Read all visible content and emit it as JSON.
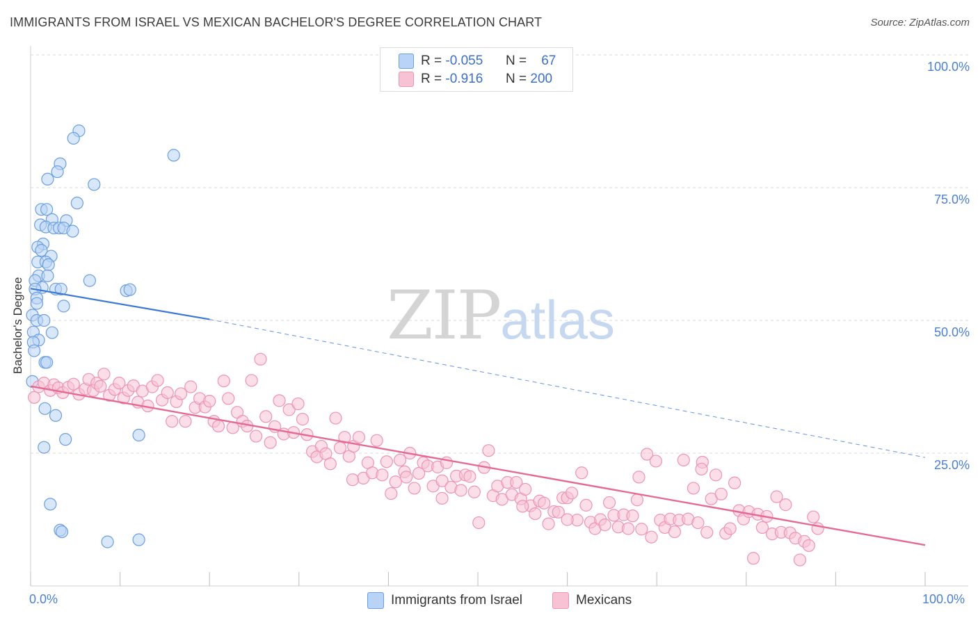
{
  "header": {
    "title": "IMMIGRANTS FROM ISRAEL VS MEXICAN BACHELOR'S DEGREE CORRELATION CHART",
    "source": "Source: ZipAtlas.com"
  },
  "watermark": {
    "zip": "ZIP",
    "atlas": "atlas"
  },
  "legend_top": {
    "israel": {
      "r_label": "R =",
      "r_value": "-0.055",
      "n_label": "N =",
      "n_value": "67"
    },
    "mexicans": {
      "r_label": "R =",
      "r_value": "-0.916",
      "n_label": "N =",
      "n_value": "200"
    }
  },
  "colors": {
    "israel_fill": "#b8d3f5",
    "israel_stroke": "#6a9ede",
    "israel_line": "#3a78d4",
    "mexicans_fill": "#f7c3d4",
    "mexicans_stroke": "#ee93b2",
    "mexicans_line": "#e46a95",
    "grid": "#d8d8d8",
    "tick_label": "#4a7fd0"
  },
  "chart_data": {
    "type": "scatter",
    "title": "IMMIGRANTS FROM ISRAEL VS MEXICAN BACHELOR'S DEGREE CORRELATION CHART",
    "xlabel": "",
    "ylabel": "Bachelor's Degree",
    "xlim": [
      0,
      100
    ],
    "ylim": [
      0,
      100
    ],
    "x_tick_labels": [
      "0.0%",
      "100.0%"
    ],
    "y_tick_labels": [
      "100.0%",
      "75.0%",
      "50.0%",
      "25.0%"
    ],
    "y_tick_values": [
      100,
      75,
      50,
      25
    ],
    "grid": true,
    "legend_position": "bottom",
    "series": [
      {
        "name": "Immigrants from Israel",
        "color": "#6a9ede",
        "points": [
          [
            5.4,
            85.7
          ],
          [
            4.8,
            84.3
          ],
          [
            16,
            81.1
          ],
          [
            3.3,
            79.5
          ],
          [
            3.0,
            78.0
          ],
          [
            1.9,
            76.6
          ],
          [
            7.1,
            75.6
          ],
          [
            5.2,
            72.1
          ],
          [
            1.2,
            70.9
          ],
          [
            1.8,
            70.9
          ],
          [
            2.4,
            69.0
          ],
          [
            4.0,
            68.8
          ],
          [
            1.1,
            68.0
          ],
          [
            1.7,
            67.6
          ],
          [
            2.6,
            67.4
          ],
          [
            3.2,
            67.4
          ],
          [
            3.7,
            67.4
          ],
          [
            4.7,
            66.8
          ],
          [
            1.4,
            64.4
          ],
          [
            0.8,
            63.8
          ],
          [
            1.2,
            63.2
          ],
          [
            2.3,
            62.1
          ],
          [
            0.8,
            61.0
          ],
          [
            1.7,
            61.0
          ],
          [
            2.0,
            60.5
          ],
          [
            0.9,
            58.4
          ],
          [
            1.9,
            58.4
          ],
          [
            0.5,
            57.5
          ],
          [
            6.6,
            57.5
          ],
          [
            1.3,
            56.2
          ],
          [
            0.5,
            55.9
          ],
          [
            2.8,
            55.9
          ],
          [
            3.4,
            55.9
          ],
          [
            10.7,
            55.6
          ],
          [
            11.1,
            55.8
          ],
          [
            0.7,
            54.2
          ],
          [
            0.7,
            53.2
          ],
          [
            3.7,
            52.7
          ],
          [
            0.2,
            51.0
          ],
          [
            0.7,
            50.0
          ],
          [
            1.5,
            50.0
          ],
          [
            0.3,
            47.8
          ],
          [
            2.4,
            47.7
          ],
          [
            0.9,
            46.3
          ],
          [
            0.3,
            45.9
          ],
          [
            0.4,
            44.3
          ],
          [
            1.6,
            42.1
          ],
          [
            1.8,
            42.1
          ],
          [
            0.2,
            38.5
          ],
          [
            1.6,
            33.4
          ],
          [
            2.8,
            32.1
          ],
          [
            12.1,
            28.4
          ],
          [
            3.9,
            27.6
          ],
          [
            1.5,
            26.1
          ],
          [
            2.2,
            15.4
          ],
          [
            3.3,
            10.5
          ],
          [
            3.5,
            10.2
          ],
          [
            8.6,
            8.3
          ],
          [
            12.1,
            8.7
          ]
        ]
      },
      {
        "name": "Mexicans",
        "color": "#ee93b2",
        "points": [
          [
            0.4,
            35.5
          ],
          [
            0.9,
            37.5
          ],
          [
            1.5,
            38.2
          ],
          [
            2.2,
            36.8
          ],
          [
            2.6,
            37.9
          ],
          [
            3.1,
            37.3
          ],
          [
            3.6,
            36.4
          ],
          [
            4.2,
            37.4
          ],
          [
            4.8,
            38.0
          ],
          [
            5.4,
            36.1
          ],
          [
            6.1,
            37.1
          ],
          [
            6.5,
            38.9
          ],
          [
            7.0,
            36.8
          ],
          [
            7.4,
            38.2
          ],
          [
            7.8,
            37.6
          ],
          [
            8.2,
            39.9
          ],
          [
            8.8,
            35.9
          ],
          [
            9.4,
            37.0
          ],
          [
            9.9,
            38.2
          ],
          [
            10.4,
            35.4
          ],
          [
            10.9,
            36.8
          ],
          [
            11.5,
            37.7
          ],
          [
            12.0,
            34.6
          ],
          [
            12.5,
            36.7
          ],
          [
            13.1,
            33.9
          ],
          [
            13.6,
            37.5
          ],
          [
            14.2,
            38.7
          ],
          [
            14.7,
            35.0
          ],
          [
            15.3,
            36.4
          ],
          [
            15.8,
            31.0
          ],
          [
            16.3,
            34.7
          ],
          [
            16.8,
            36.2
          ],
          [
            17.3,
            31.0
          ],
          [
            17.9,
            37.5
          ],
          [
            18.4,
            33.6
          ],
          [
            18.9,
            35.3
          ],
          [
            19.5,
            33.7
          ],
          [
            20.0,
            34.8
          ],
          [
            20.5,
            31.0
          ],
          [
            21.0,
            30.1
          ],
          [
            21.6,
            38.6
          ],
          [
            22.1,
            35.3
          ],
          [
            22.6,
            29.8
          ],
          [
            23.1,
            32.7
          ],
          [
            23.7,
            31.0
          ],
          [
            24.2,
            30.1
          ],
          [
            24.7,
            38.7
          ],
          [
            25.2,
            28.2
          ],
          [
            25.7,
            42.7
          ],
          [
            26.3,
            31.9
          ],
          [
            26.8,
            27.0
          ],
          [
            27.3,
            30.0
          ],
          [
            27.8,
            34.9
          ],
          [
            28.3,
            28.6
          ],
          [
            28.9,
            33.2
          ],
          [
            29.4,
            28.9
          ],
          [
            29.9,
            34.3
          ],
          [
            30.4,
            31.4
          ],
          [
            30.9,
            28.5
          ],
          [
            31.5,
            25.3
          ],
          [
            32.0,
            24.3
          ],
          [
            32.5,
            26.3
          ],
          [
            33.0,
            24.9
          ],
          [
            33.5,
            23.0
          ],
          [
            34.1,
            31.6
          ],
          [
            34.6,
            26.0
          ],
          [
            35.1,
            28.0
          ],
          [
            35.6,
            24.4
          ],
          [
            36.1,
            26.3
          ],
          [
            36.7,
            28.0
          ],
          [
            37.2,
            20.3
          ],
          [
            37.7,
            23.2
          ],
          [
            38.2,
            21.3
          ],
          [
            38.7,
            27.4
          ],
          [
            39.3,
            20.9
          ],
          [
            39.8,
            23.4
          ],
          [
            40.3,
            17.4
          ],
          [
            40.8,
            19.6
          ],
          [
            41.3,
            23.7
          ],
          [
            41.8,
            21.5
          ],
          [
            42.4,
            25.0
          ],
          [
            42.9,
            18.4
          ],
          [
            43.4,
            21.2
          ],
          [
            43.9,
            23.2
          ],
          [
            44.4,
            22.6
          ],
          [
            45.0,
            18.8
          ],
          [
            45.5,
            22.4
          ],
          [
            46.0,
            19.8
          ],
          [
            46.5,
            23.2
          ],
          [
            47.0,
            18.6
          ],
          [
            47.6,
            20.7
          ],
          [
            48.1,
            18.0
          ],
          [
            48.6,
            20.9
          ],
          [
            49.1,
            20.6
          ],
          [
            49.6,
            17.7
          ],
          [
            50.1,
            11.9
          ],
          [
            50.7,
            22.3
          ],
          [
            51.2,
            25.5
          ],
          [
            51.7,
            17.0
          ],
          [
            52.2,
            18.8
          ],
          [
            52.7,
            16.3
          ],
          [
            53.3,
            19.5
          ],
          [
            53.8,
            17.2
          ],
          [
            54.3,
            19.5
          ],
          [
            54.8,
            16.4
          ],
          [
            55.3,
            18.2
          ],
          [
            55.9,
            15.1
          ],
          [
            56.4,
            13.6
          ],
          [
            56.9,
            16.0
          ],
          [
            57.4,
            15.6
          ],
          [
            57.9,
            11.7
          ],
          [
            58.5,
            14.0
          ],
          [
            59.0,
            13.9
          ],
          [
            59.5,
            16.6
          ],
          [
            60.0,
            16.6
          ],
          [
            60.5,
            17.5
          ],
          [
            61.1,
            12.4
          ],
          [
            61.6,
            21.3
          ],
          [
            62.1,
            15.2
          ],
          [
            62.6,
            12.0
          ],
          [
            63.1,
            10.8
          ],
          [
            63.7,
            12.5
          ],
          [
            64.2,
            11.5
          ],
          [
            64.7,
            15.7
          ],
          [
            65.2,
            13.3
          ],
          [
            65.7,
            11.1
          ],
          [
            66.3,
            13.4
          ],
          [
            66.8,
            10.8
          ],
          [
            67.3,
            13.2
          ],
          [
            67.8,
            16.2
          ],
          [
            68.3,
            10.7
          ],
          [
            68.9,
            24.8
          ],
          [
            69.4,
            9.2
          ],
          [
            69.9,
            23.5
          ],
          [
            70.4,
            12.4
          ],
          [
            70.9,
            11.0
          ],
          [
            71.5,
            12.6
          ],
          [
            72.0,
            10.2
          ],
          [
            72.5,
            12.4
          ],
          [
            73.0,
            23.7
          ],
          [
            73.5,
            12.6
          ],
          [
            74.1,
            18.4
          ],
          [
            74.6,
            11.9
          ],
          [
            75.1,
            23.3
          ],
          [
            75.6,
            10.1
          ],
          [
            76.1,
            16.4
          ],
          [
            76.6,
            20.9
          ],
          [
            77.2,
            17.3
          ],
          [
            77.7,
            9.9
          ],
          [
            78.2,
            10.8
          ],
          [
            78.7,
            19.4
          ],
          [
            79.2,
            14.2
          ],
          [
            79.7,
            12.6
          ],
          [
            80.3,
            14.0
          ],
          [
            80.8,
            5.2
          ],
          [
            81.3,
            13.5
          ],
          [
            81.8,
            11.0
          ],
          [
            82.3,
            13.1
          ],
          [
            82.9,
            9.8
          ],
          [
            83.4,
            16.8
          ],
          [
            83.9,
            10.1
          ],
          [
            84.4,
            15.3
          ],
          [
            84.9,
            10.0
          ],
          [
            85.5,
            9.0
          ],
          [
            86.0,
            4.9
          ],
          [
            86.5,
            8.4
          ],
          [
            87.0,
            7.6
          ],
          [
            87.5,
            13.0
          ],
          [
            88.0,
            10.8
          ],
          [
            75.0,
            22.0
          ],
          [
            68.0,
            20.5
          ],
          [
            60.0,
            12.5
          ],
          [
            55.0,
            15.0
          ],
          [
            46.0,
            16.5
          ],
          [
            42.0,
            20.5
          ],
          [
            36.0,
            20.0
          ]
        ]
      }
    ],
    "trend_lines": [
      {
        "series": "Immigrants from Israel",
        "x": [
          0,
          20
        ],
        "y": [
          56.0,
          50.2
        ],
        "dashed_extension_to": [
          100,
          24.2
        ]
      },
      {
        "series": "Mexicans",
        "x": [
          0,
          100
        ],
        "y": [
          37.6,
          7.7
        ]
      }
    ]
  },
  "legend_bottom": {
    "israel_label": "Immigrants from Israel",
    "mexicans_label": "Mexicans"
  }
}
